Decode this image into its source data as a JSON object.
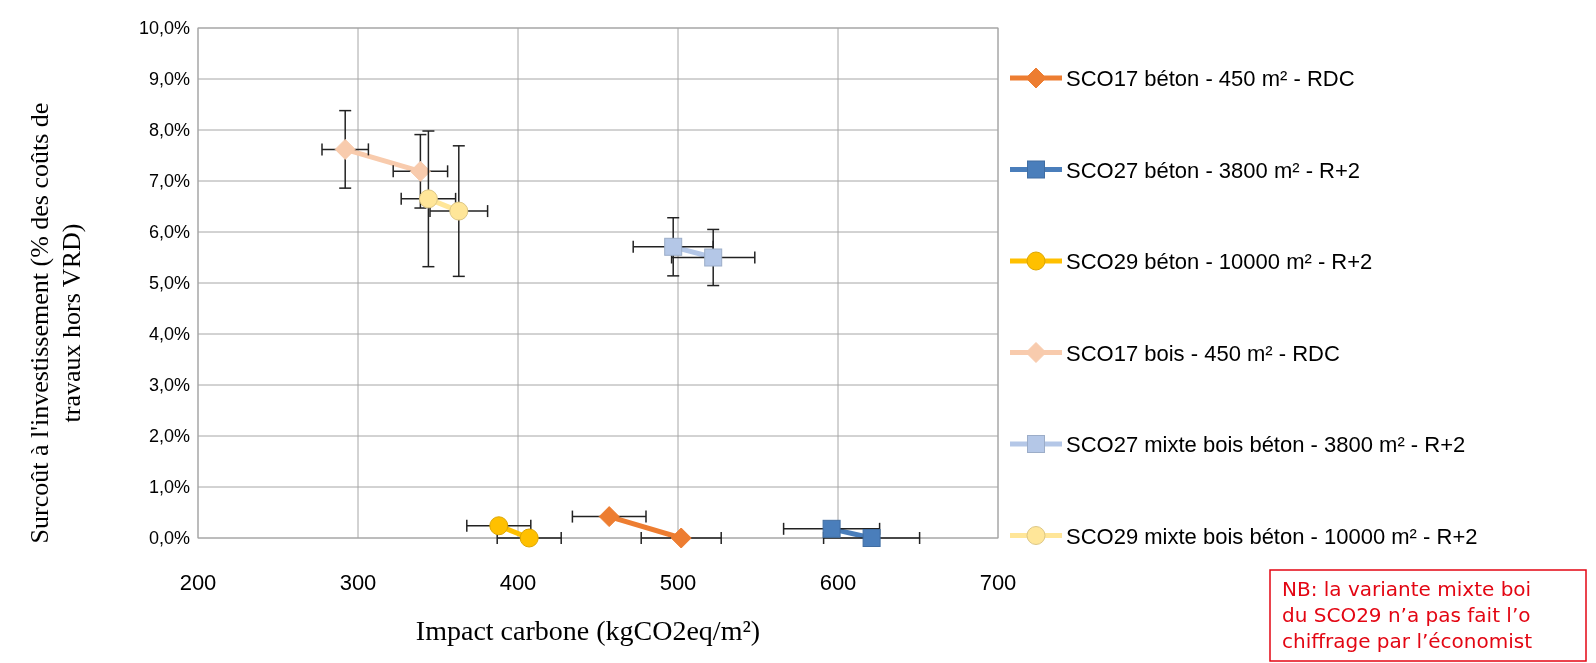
{
  "chart_data": {
    "type": "line",
    "xlabel": "Impact carbone (kgCO2eq/m²)",
    "ylabel": "Surcoût à l'investissement (% des coûts de travaux hors VRD)",
    "xlim": [
      200,
      700
    ],
    "xticks": [
      200,
      300,
      400,
      500,
      600,
      700
    ],
    "ylim": [
      0,
      10
    ],
    "yticks": [
      {
        "value": 0,
        "label": "0,0%"
      },
      {
        "value": 1,
        "label": "1,0%"
      },
      {
        "value": 2,
        "label": "2,0%"
      },
      {
        "value": 3,
        "label": "3,0%"
      },
      {
        "value": 4,
        "label": "4,0%"
      },
      {
        "value": 5,
        "label": "5,0%"
      },
      {
        "value": 6,
        "label": "6,0%"
      },
      {
        "value": 7,
        "label": "7,0%"
      },
      {
        "value": 8,
        "label": "8,0%"
      },
      {
        "value": 9,
        "label": "9,0%"
      },
      {
        "value": 10,
        "label": "10,0%"
      }
    ],
    "grid": true,
    "legend": "right",
    "series": [
      {
        "name": "SCO17 béton - 450 m² - RDC",
        "color": "#ed7d31",
        "marker": "diamond",
        "x": [
          457,
          502
        ],
        "values": [
          0.42,
          0
        ],
        "xerrors": [
          23,
          25
        ]
      },
      {
        "name": "SCO27 béton - 3800 m² - R+2",
        "color": "#4a7ebb",
        "marker": "square",
        "x": [
          596,
          621
        ],
        "values": [
          0.18,
          0
        ],
        "xerrors": [
          30,
          30
        ]
      },
      {
        "name": "SCO29 béton - 10000 m² - R+2",
        "color": "#ffc000",
        "marker": "circle",
        "x": [
          388,
          407
        ],
        "values": [
          0.24,
          0
        ],
        "xerrors": [
          20,
          20
        ]
      },
      {
        "name": "SCO17 bois - 450 m² - RDC",
        "color": "#f8cbad",
        "marker": "diamond",
        "x": [
          292,
          339
        ],
        "values": [
          7.62,
          7.19
        ],
        "xerrors": [
          14.5,
          17
        ],
        "errors": [
          0.76,
          0.72
        ]
      },
      {
        "name": "SCO27 mixte bois béton - 3800 m² - R+2",
        "color": "#b4c7e7",
        "marker": "square",
        "x": [
          497,
          522
        ],
        "values": [
          5.71,
          5.5
        ],
        "xerrors": [
          25,
          26
        ],
        "errors": [
          0.57,
          0.55
        ]
      },
      {
        "name": "SCO29 mixte bois béton - 10000 m² - R+2",
        "color": "#ffe699",
        "marker": "circle",
        "x": [
          344,
          363
        ],
        "values": [
          6.65,
          6.41
        ],
        "xerrors": [
          17,
          18
        ],
        "errors": [
          1.33,
          1.28
        ]
      }
    ],
    "annotations": [
      "NB: la variante mixte boi\ndu SCO29 n’a pas fait l’o\nchiffrage par l’économist"
    ]
  }
}
